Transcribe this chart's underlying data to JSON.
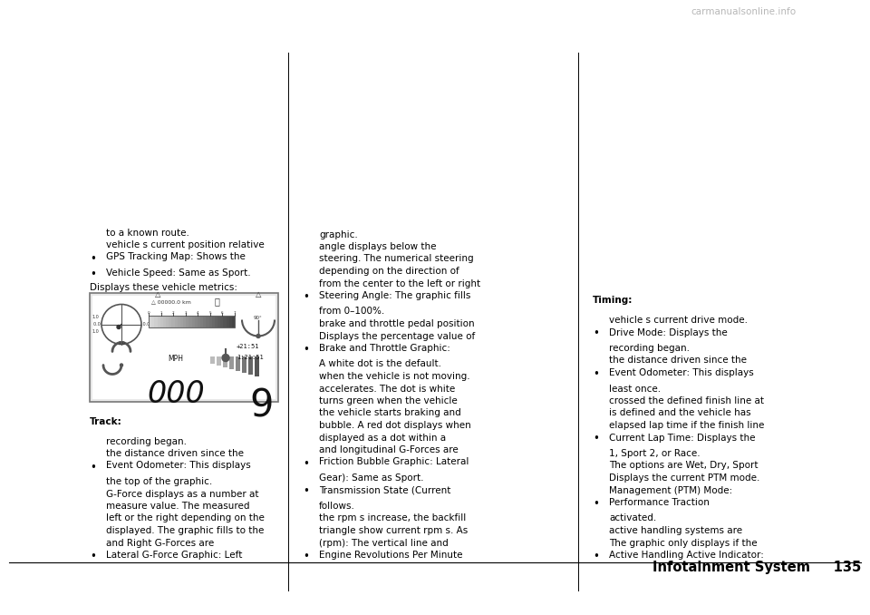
{
  "bg_color": "#ffffff",
  "page_width": 9.6,
  "page_height": 6.78,
  "header_text": "Infotainment System",
  "header_page": "135",
  "font_color": "#000000",
  "font_size_body": 7.5,
  "font_size_header": 10.0,
  "font_size_page": 10.0,
  "bullet_char": "•",
  "col1_bullets": [
    "Lateral G-Force Graphic: Left\nand Right G-Forces are\ndisplayed. The graphic fills to the\nleft or the right depending on the\nmeasure value. The measured\nG-Force displays as a number at\nthe top of the graphic.",
    "Event Odometer: This displays\nthe distance driven since the\nrecording began."
  ],
  "col1_track_label": "Track:",
  "col1_after_image_plain": "Displays these vehicle metrics:",
  "col1_after_bullets": [
    "Vehicle Speed: Same as Sport.",
    "GPS Tracking Map: Shows the\nvehicle s current position relative\nto a known route."
  ],
  "col2_bullets": [
    "Engine Revolutions Per Minute\n(rpm): The vertical line and\ntriangle show current rpm s. As\nthe rpm s increase, the backfill\nfollows.",
    "Transmission State (Current\nGear): Same as Sport.",
    "Friction Bubble Graphic: Lateral\nand longitudinal G-Forces are\ndisplayed as a dot within a\nbubble. A red dot displays when\nthe vehicle starts braking and\nturns green when the vehicle\naccelerates. The dot is white\nwhen the vehicle is not moving.\nA white dot is the default.",
    "Brake and Throttle Graphic:\nDisplays the percentage value of\nbrake and throttle pedal position\nfrom 0–100%.",
    "Steering Angle: The graphic fills\nfrom the center to the left or right\ndepending on the direction of\nsteering. The numerical steering\nangle displays below the\ngraphic."
  ],
  "col3_bullets": [
    "Active Handling Active Indicator:\nThe graphic only displays if the\nactive handling systems are\nactivated.",
    "Performance Traction\nManagement (PTM) Mode:\nDisplays the current PTM mode.\nThe options are Wet, Dry, Sport\n1, Sport 2, or Race.",
    "Current Lap Time: Displays the\nelapsed lap time if the finish line\nis defined and the vehicle has\ncrossed the defined finish line at\nleast once.",
    "Event Odometer: This displays\nthe distance driven since the\nrecording began.",
    "Drive Mode: Displays the\nvehicle s current drive mode."
  ],
  "col3_timing_label": "Timing:",
  "watermark_text": "carmanualsonline.info"
}
